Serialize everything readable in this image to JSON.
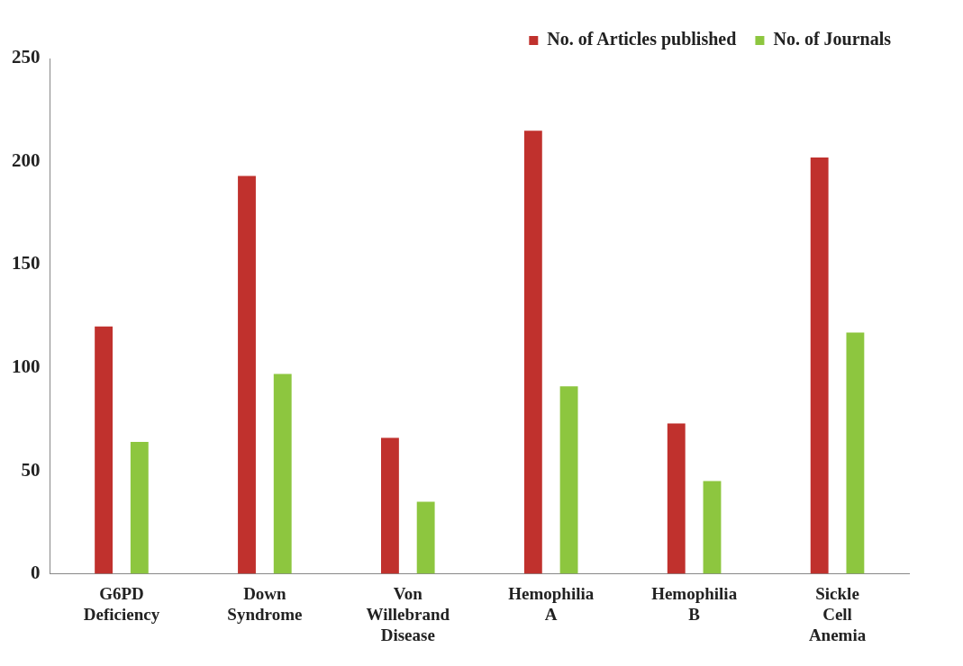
{
  "chart_data": {
    "type": "bar",
    "categories": [
      "G6PD Deficiency",
      "Down Syndrome",
      "Von Willebrand Disease",
      "Hemophilia A",
      "Hemophilia B",
      "Sickle Cell Anemia"
    ],
    "series": [
      {
        "name": "No. of Articles published",
        "color": "#c0312d",
        "values": [
          120,
          193,
          66,
          215,
          73,
          202
        ]
      },
      {
        "name": "No. of Journals",
        "color": "#8dc63f",
        "values": [
          64,
          97,
          35,
          91,
          45,
          117
        ]
      }
    ],
    "ylim": [
      0,
      250
    ],
    "yticks": [
      0,
      50,
      100,
      150,
      200,
      250
    ],
    "grid": false,
    "legend": "top right"
  }
}
